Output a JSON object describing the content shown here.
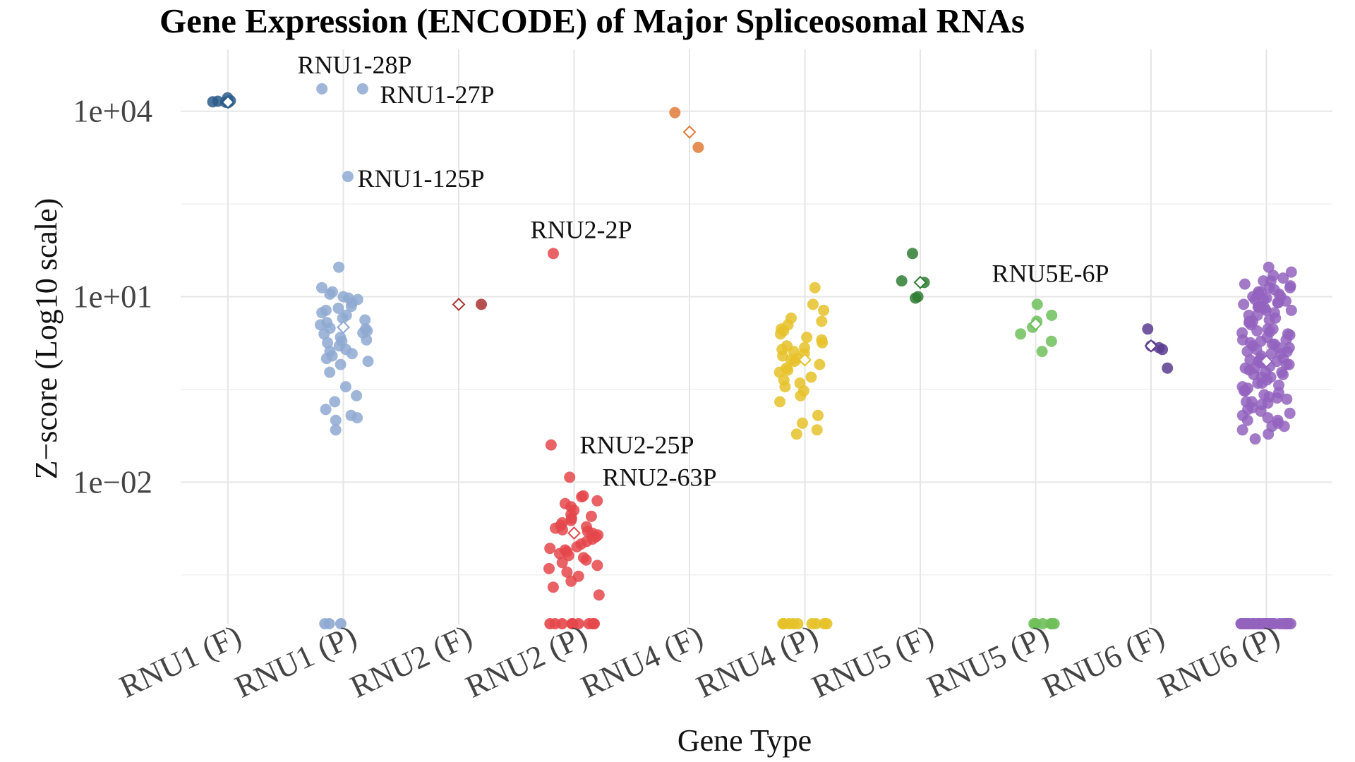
{
  "chart_data": {
    "type": "scatter",
    "title": "Gene Expression (ENCODE) of Major Spliceosomal RNAs",
    "xlabel": "Gene Type",
    "ylabel": "Z−score (Log10 scale)",
    "y_scale": "log10",
    "ylim": [
      5e-05,
      100000
    ],
    "y_ticks": [
      {
        "value": 10000,
        "label": "1e+04"
      },
      {
        "value": 10,
        "label": "1e+01"
      },
      {
        "value": 0.01,
        "label": "1e−02"
      }
    ],
    "categories": [
      "RNU1 (F)",
      "RNU1 (P)",
      "RNU2 (F)",
      "RNU2 (P)",
      "RNU4 (F)",
      "RNU4 (P)",
      "RNU5 (F)",
      "RNU5 (P)",
      "RNU6 (F)",
      "RNU6 (P)"
    ],
    "colors": [
      "#2b5c8a",
      "#8ea9d1",
      "#a83232",
      "#e4474b",
      "#e07b3a",
      "#e6c229",
      "#2e7d32",
      "#6fbf5b",
      "#5b3c8f",
      "#9363be"
    ],
    "grid": true,
    "legend": "none",
    "marker_mean": "diamond",
    "series": [
      {
        "category": "RNU1 (F)",
        "mean": 14000,
        "zero_count": 0,
        "values": [
          16500,
          14800,
          14200,
          14500,
          14000,
          13800
        ]
      },
      {
        "category": "RNU1 (P)",
        "mean": 3.2,
        "zero_count": 3,
        "values": [
          23000,
          23000,
          880,
          30,
          12,
          9,
          7,
          14,
          10,
          11,
          8,
          6,
          5,
          4.5,
          3.8,
          3.5,
          3,
          2.8,
          2.5,
          2.2,
          2,
          1.8,
          1.6,
          1.4,
          1.2,
          1.1,
          1,
          0.9,
          0.8,
          0.6,
          0.35,
          0.2,
          0.15,
          0.11,
          0.1,
          0.07,
          5.5,
          4.2,
          3.1,
          2.6,
          1.9,
          1.3,
          9.5,
          6.5,
          0.25,
          0.12
        ]
      },
      {
        "category": "RNU2 (F)",
        "mean": 7.5,
        "zero_count": 0,
        "values": [
          7.5
        ]
      },
      {
        "category": "RNU2 (P)",
        "mean": 0.0015,
        "zero_count": 9,
        "values": [
          50,
          0.04,
          0.012,
          0.006,
          0.0058,
          0.005,
          0.0045,
          0.004,
          0.0035,
          0.003,
          0.0028,
          0.0026,
          0.0024,
          0.0022,
          0.002,
          0.0019,
          0.0018,
          0.0017,
          0.0016,
          0.0015,
          0.0014,
          0.0013,
          0.0012,
          0.0011,
          0.001,
          0.0009,
          0.00085,
          0.0008,
          0.00075,
          0.0007,
          0.00065,
          0.0006,
          0.00055,
          0.0005,
          0.00045,
          0.0004,
          0.00035,
          0.0003,
          0.00025,
          0.0002,
          0.00015
        ]
      },
      {
        "category": "RNU4 (F)",
        "mean": 4600,
        "zero_count": 0,
        "values": [
          9500,
          2600
        ]
      },
      {
        "category": "RNU4 (P)",
        "mean": 0.95,
        "zero_count": 10,
        "values": [
          14,
          7.5,
          6,
          4.5,
          4,
          3.5,
          3,
          2.8,
          2.5,
          2.2,
          2,
          1.8,
          1.6,
          1.5,
          1.4,
          1.3,
          1.2,
          1.1,
          1,
          0.95,
          0.9,
          0.8,
          0.7,
          0.65,
          0.6,
          0.5,
          0.45,
          0.4,
          0.35,
          0.3,
          0.25,
          0.2,
          0.12,
          0.09,
          0.07,
          0.06
        ]
      },
      {
        "category": "RNU5 (F)",
        "mean": 17,
        "zero_count": 0,
        "values": [
          50,
          18,
          17,
          10,
          9.5
        ]
      },
      {
        "category": "RNU5 (P)",
        "mean": 3.6,
        "zero_count": 6,
        "values": [
          7.5,
          5,
          4,
          3.2,
          2.5,
          1.9,
          1.3
        ]
      },
      {
        "category": "RNU6 (F)",
        "mean": 1.6,
        "zero_count": 0,
        "values": [
          3,
          1.6,
          1.5,
          1.4,
          0.7
        ]
      },
      {
        "category": "RNU6 (P)",
        "mean": 0.9,
        "zero_count": 40,
        "values": [
          30,
          25,
          22,
          20,
          18,
          16,
          15,
          14,
          13,
          12,
          11,
          10,
          9.5,
          9,
          8.5,
          8,
          7.5,
          7,
          6.5,
          6,
          5.5,
          5,
          4.5,
          4,
          3.5,
          3,
          2.8,
          2.6,
          2.4,
          2.2,
          2,
          1.9,
          1.8,
          1.7,
          1.6,
          1.5,
          1.4,
          1.3,
          1.2,
          1.1,
          1,
          0.95,
          0.9,
          0.85,
          0.8,
          0.75,
          0.7,
          0.65,
          0.6,
          0.55,
          0.5,
          0.45,
          0.4,
          0.35,
          0.3,
          0.28,
          0.26,
          0.24,
          0.22,
          0.2,
          0.18,
          0.16,
          0.14,
          0.12,
          0.1,
          0.09,
          0.08,
          0.07,
          0.06,
          0.05,
          12,
          10,
          8,
          6,
          4,
          3,
          2,
          1.5,
          1,
          0.8,
          0.6,
          0.4,
          0.3,
          0.2,
          0.15,
          0.1,
          18,
          14,
          9,
          7,
          5,
          3.8,
          2.5,
          1.7,
          1.2,
          0.9,
          0.7,
          0.5,
          0.33,
          0.23,
          0.13,
          0.08,
          11,
          6.8,
          4.2,
          2.7,
          1.3,
          0.85,
          0.55,
          0.37,
          0.19,
          0.11
        ]
      }
    ],
    "annotations": [
      {
        "text": "RNU1-28P",
        "category": "RNU1 (P)",
        "y": 23000
      },
      {
        "text": "RNU1-27P",
        "category": "RNU1 (P)",
        "y": 23000
      },
      {
        "text": "RNU1-125P",
        "category": "RNU1 (P)",
        "y": 880
      },
      {
        "text": "RNU2-2P",
        "category": "RNU2 (P)",
        "y": 50
      },
      {
        "text": "RNU2-25P",
        "category": "RNU2 (P)",
        "y": 0.04
      },
      {
        "text": "RNU2-63P",
        "category": "RNU2 (P)",
        "y": 0.012
      },
      {
        "text": "RNU5E-6P",
        "category": "RNU5 (P)",
        "y": 7.5
      }
    ]
  }
}
